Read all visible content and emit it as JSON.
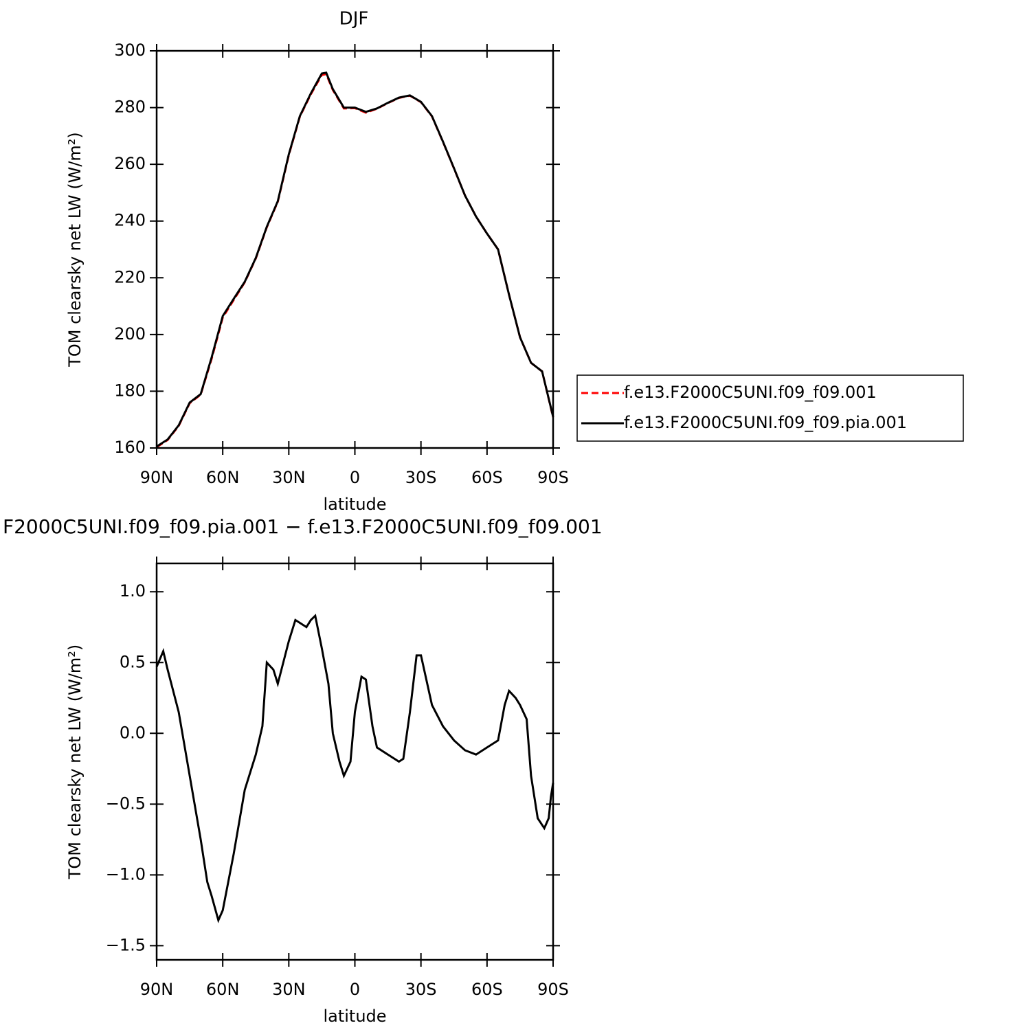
{
  "chart_data": [
    {
      "type": "line",
      "title": "DJF",
      "xlabel": "latitude",
      "ylabel": "TOM clearsky net LW (W/m²)",
      "x": [
        90,
        85,
        80,
        75,
        70,
        65,
        60,
        55,
        50,
        45,
        40,
        35,
        30,
        25,
        20,
        15,
        13,
        10,
        5,
        0,
        -5,
        -10,
        -15,
        -20,
        -25,
        -30,
        -35,
        -40,
        -45,
        -50,
        -55,
        -60,
        -65,
        -70,
        -75,
        -80,
        -85,
        -90
      ],
      "series": [
        {
          "name": "f.e13.F2000C5UNI.f09_f09.001",
          "color": "#ff0000",
          "line_style": "dashed",
          "values": [
            160.3,
            162.8,
            167.8,
            175.8,
            178.8,
            191.5,
            206,
            212.2,
            218.4,
            226.8,
            237.8,
            246.8,
            263.2,
            276.8,
            284.7,
            291.5,
            291.8,
            286.2,
            279.7,
            279.8,
            278.2,
            279.6,
            281.6,
            283.4,
            284.2,
            281.9,
            276.9,
            267.9,
            258.5,
            249,
            241.6,
            235.6,
            230,
            214,
            199,
            190,
            187,
            170.8
          ]
        },
        {
          "name": "f.e13.F2000C5UNI.f09_f09.pia.001",
          "color": "#000000",
          "line_style": "solid",
          "values": [
            160.5,
            163,
            168,
            176,
            179,
            192,
            206.5,
            212.6,
            218.6,
            227,
            238,
            247,
            263.5,
            277,
            285,
            292,
            292.3,
            286.5,
            280,
            280,
            278.5,
            279.7,
            281.7,
            283.5,
            284.3,
            282,
            277,
            268,
            258.6,
            249,
            241.6,
            235.6,
            230,
            214,
            199,
            190,
            187,
            171
          ]
        }
      ],
      "xlim": [
        90,
        -90
      ],
      "xticks": [
        {
          "value": 90,
          "label": "90N"
        },
        {
          "value": 60,
          "label": "60N"
        },
        {
          "value": 30,
          "label": "30N"
        },
        0,
        {
          "value": -30,
          "label": "30S"
        },
        {
          "value": -60,
          "label": "60S"
        },
        {
          "value": -90,
          "label": "90S"
        }
      ],
      "ylim": [
        160,
        300
      ],
      "yticks": [
        160,
        180,
        200,
        220,
        240,
        260,
        280,
        300
      ],
      "legend": "right"
    },
    {
      "type": "line",
      "title": "F2000C5UNI.f09_f09.pia.001 − f.e13.F2000C5UNI.f09_f09.001",
      "xlabel": "latitude",
      "ylabel": "TOM clearsky net LW (W/m²)",
      "x": [
        90,
        87,
        85,
        80,
        75,
        70,
        67,
        65,
        62,
        60,
        55,
        50,
        45,
        42,
        40,
        37,
        35,
        30,
        27,
        25,
        22,
        20,
        18,
        15,
        12,
        10,
        7,
        5,
        2,
        0,
        -3,
        -5,
        -8,
        -10,
        -15,
        -20,
        -22,
        -25,
        -28,
        -30,
        -35,
        -40,
        -45,
        -50,
        -55,
        -60,
        -65,
        -68,
        -70,
        -73,
        -75,
        -78,
        -80,
        -83,
        -86,
        -88,
        -89,
        -90
      ],
      "series": [
        {
          "name": "f.e13.F2000C5UNI.f09_f09.pia.001",
          "color": "#000000",
          "line_style": "solid",
          "values": [
            0.47,
            0.58,
            0.45,
            0.15,
            -0.3,
            -0.75,
            -1.05,
            -1.15,
            -1.32,
            -1.25,
            -0.85,
            -0.4,
            -0.15,
            0.05,
            0.5,
            0.45,
            0.35,
            0.65,
            0.8,
            0.78,
            0.75,
            0.8,
            0.83,
            0.6,
            0.35,
            0.0,
            -0.2,
            -0.3,
            -0.2,
            0.15,
            0.4,
            0.38,
            0.05,
            -0.1,
            -0.15,
            -0.2,
            -0.18,
            0.15,
            0.55,
            0.55,
            0.2,
            0.05,
            -0.05,
            -0.12,
            -0.15,
            -0.1,
            -0.05,
            0.2,
            0.3,
            0.25,
            0.2,
            0.1,
            -0.3,
            -0.6,
            -0.67,
            -0.6,
            -0.45,
            -0.35
          ]
        }
      ],
      "xlim": [
        90,
        -90
      ],
      "xticks": [
        {
          "value": 90,
          "label": "90N"
        },
        {
          "value": 60,
          "label": "60N"
        },
        {
          "value": 30,
          "label": "30N"
        },
        0,
        {
          "value": -30,
          "label": "30S"
        },
        {
          "value": -60,
          "label": "60S"
        },
        {
          "value": -90,
          "label": "90S"
        }
      ],
      "ylim": [
        -1.6,
        1.2
      ],
      "yticks": [
        {
          "value": -1.5,
          "label": "−1.5"
        },
        {
          "value": -1.0,
          "label": "−1.0"
        },
        {
          "value": -0.5,
          "label": "−0.5"
        },
        {
          "value": 0,
          "label": "0.0"
        },
        {
          "value": 0.5,
          "label": "0.5"
        },
        {
          "value": 1.0,
          "label": "1.0"
        }
      ]
    }
  ]
}
